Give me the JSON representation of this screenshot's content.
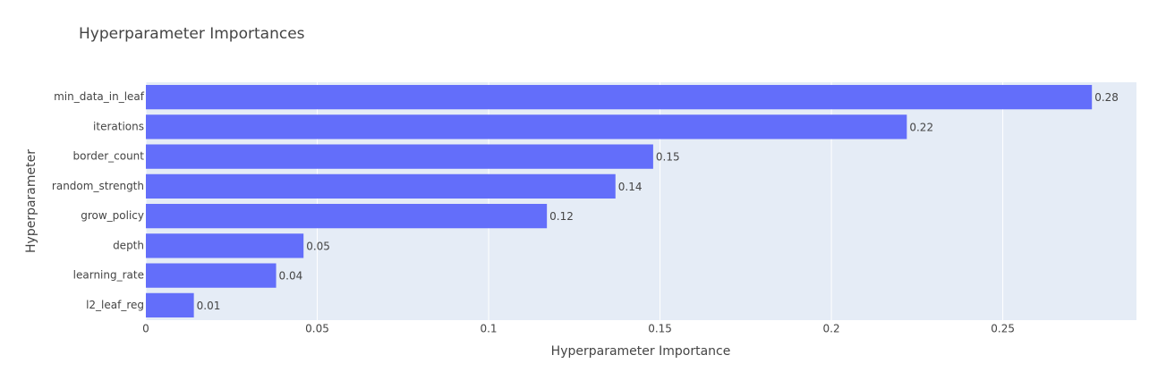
{
  "chart_data": {
    "type": "hbar",
    "title": "Hyperparameter Importances",
    "x_label": "Hyperparameter Importance",
    "y_label": "Hyperparameter",
    "categories": [
      "min_data_in_leaf",
      "iterations",
      "border_count",
      "random_strength",
      "grow_policy",
      "depth",
      "learning_rate",
      "l2_leaf_reg"
    ],
    "values": [
      0.276,
      0.222,
      0.148,
      0.137,
      0.117,
      0.046,
      0.038,
      0.014
    ],
    "value_labels": [
      "0.28",
      "0.22",
      "0.15",
      "0.14",
      "0.12",
      "0.05",
      "0.04",
      "0.01"
    ],
    "color": "#636efa",
    "xlim": [
      0,
      0.289
    ],
    "xticks": [
      0,
      0.05,
      0.1,
      0.15,
      0.2,
      0.25
    ],
    "grid": true
  }
}
